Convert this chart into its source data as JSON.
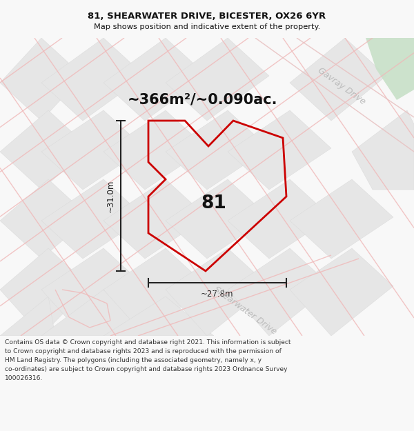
{
  "title_line1": "81, SHEARWATER DRIVE, BICESTER, OX26 6YR",
  "title_line2": "Map shows position and indicative extent of the property.",
  "area_label": "~366m²/~0.090ac.",
  "number_label": "81",
  "dim_height": "~31.0m",
  "dim_width": "~27.8m",
  "road_label_1": "Gavray Drive",
  "road_label_2": "Shearwater Drive",
  "footer_lines": [
    "Contains OS data © Crown copyright and database right 2021. This information is subject",
    "to Crown copyright and database rights 2023 and is reproduced with the permission of",
    "HM Land Registry. The polygons (including the associated geometry, namely x, y",
    "co-ordinates) are subject to Crown copyright and database rights 2023 Ordnance Survey",
    "100026316."
  ],
  "bg_color": "#f8f8f8",
  "map_bg": "#f8f8f8",
  "block_fill": "#e6e6e6",
  "road_stroke": "#f0b8b8",
  "road_stroke_dark": "#d8d8d8",
  "property_stroke": "#cc0000",
  "dim_color": "#222222",
  "title_color": "#111111",
  "footer_color": "#333333",
  "road_label_color": "#bbbbbb",
  "area_label_color": "#111111",
  "number_color": "#111111",
  "green_patch_color": "#c8e0c8"
}
